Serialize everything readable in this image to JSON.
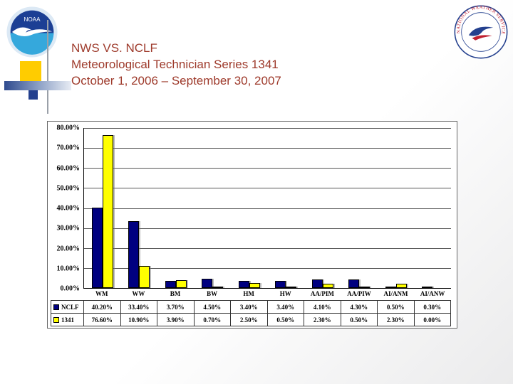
{
  "slide": {
    "title_lines": [
      "NWS VS. NCLF",
      "Meteorological Technician Series 1341",
      "October 1, 2006 – September 30, 2007"
    ],
    "title_color": "#9E3A2B"
  },
  "logos": {
    "noaa_text": "NOAA",
    "nws_ring_text": "NATIONAL WEATHER SERVICE"
  },
  "chart_data": {
    "type": "bar",
    "title": "",
    "xlabel": "",
    "ylabel": "",
    "categories": [
      "WM",
      "WW",
      "BM",
      "BW",
      "HM",
      "HW",
      "AA/PIM",
      "AA/PIW",
      "AI/ANM",
      "AI/ANW"
    ],
    "series": [
      {
        "name": "NCLF",
        "color": "#000080",
        "values": [
          40.2,
          33.4,
          3.7,
          4.5,
          3.4,
          3.4,
          4.1,
          4.3,
          0.5,
          0.3
        ],
        "labels": [
          "40.20%",
          "33.40%",
          "3.70%",
          "4.50%",
          "3.40%",
          "3.40%",
          "4.10%",
          "4.30%",
          "0.50%",
          "0.30%"
        ]
      },
      {
        "name": "1341",
        "color": "#FFFF00",
        "values": [
          76.6,
          10.9,
          3.9,
          0.7,
          2.5,
          0.5,
          2.3,
          0.5,
          2.3,
          0.0
        ],
        "labels": [
          "76.60%",
          "10.90%",
          "3.90%",
          "0.70%",
          "2.50%",
          "0.50%",
          "2.30%",
          "0.50%",
          "2.30%",
          "0.00%"
        ]
      }
    ],
    "y_ticks": [
      "80.00%",
      "70.00%",
      "60.00%",
      "50.00%",
      "40.00%",
      "30.00%",
      "20.00%",
      "10.00%",
      "0.00%"
    ],
    "ylim": [
      0,
      80
    ],
    "grid": true,
    "legend_position": "data-table-left"
  }
}
